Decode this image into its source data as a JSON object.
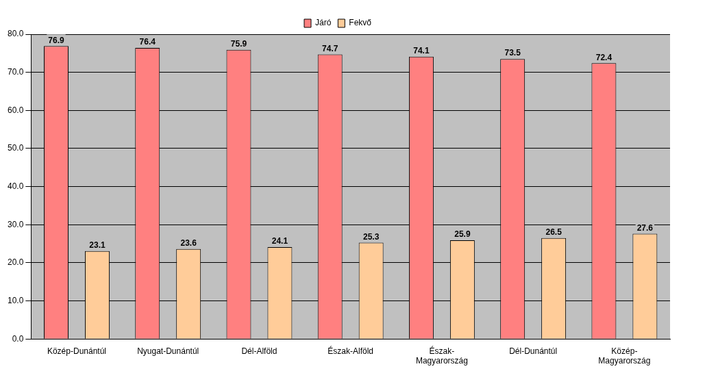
{
  "chart_data": {
    "type": "bar",
    "categories": [
      "Közép-Dunántúl",
      "Nyugat-Dunántúl",
      "Dél-Alföld",
      "Észak-Alföld",
      "Észak-Magyarország",
      "Dél-Dunántúl",
      "Közép-Magyarország"
    ],
    "series": [
      {
        "name": "Járó",
        "color": "#ff8080",
        "values": [
          76.9,
          76.4,
          75.9,
          74.7,
          74.1,
          73.5,
          72.4
        ]
      },
      {
        "name": "Fekvő",
        "color": "#ffcc99",
        "values": [
          23.1,
          23.6,
          24.1,
          25.3,
          25.9,
          26.5,
          27.6
        ]
      }
    ],
    "ylim": [
      0,
      80
    ],
    "yticks": [
      {
        "value": 0,
        "label": "0.0"
      },
      {
        "value": 10,
        "label": "10.0"
      },
      {
        "value": 20,
        "label": "20.0"
      },
      {
        "value": 30,
        "label": "30.0"
      },
      {
        "value": 40,
        "label": "40.0"
      },
      {
        "value": 50,
        "label": "50.0"
      },
      {
        "value": 60,
        "label": "60.0"
      },
      {
        "value": 70,
        "label": "70.0"
      },
      {
        "value": 80,
        "label": "80.0"
      }
    ],
    "grid": "y",
    "legend": "top",
    "data_labels": true
  }
}
